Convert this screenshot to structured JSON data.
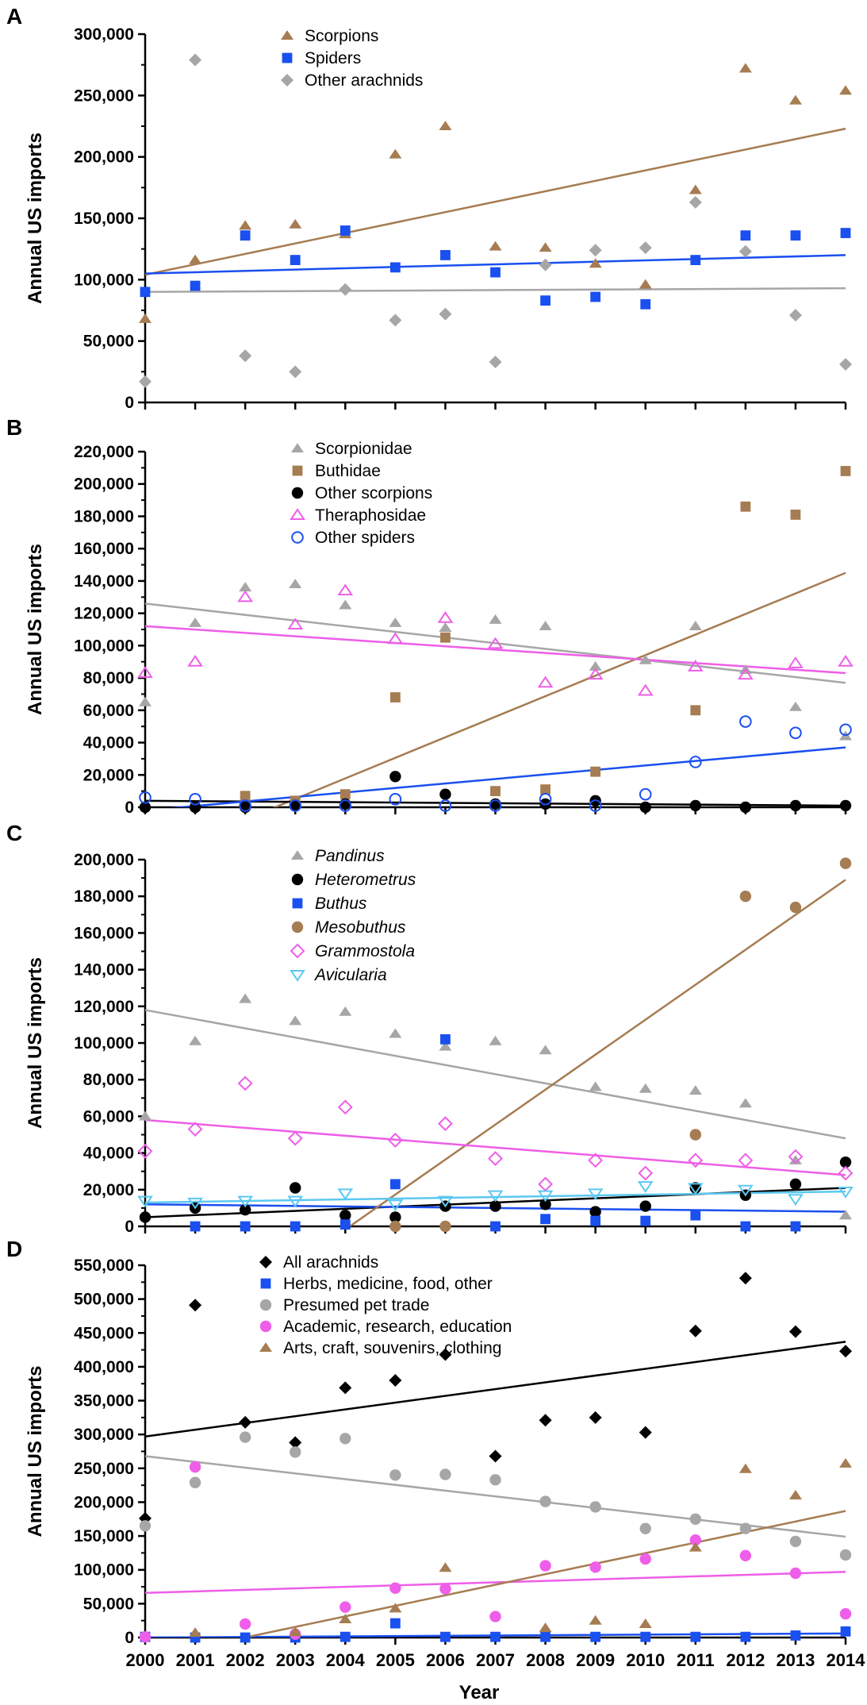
{
  "figure": {
    "xlabel": "Year",
    "x_ticks": [
      "2000",
      "2001",
      "2002",
      "2003",
      "2004",
      "2005",
      "2006",
      "2007",
      "2008",
      "2009",
      "2010",
      "2011",
      "2012",
      "2013",
      "2014"
    ]
  },
  "chart_data": [
    {
      "panel": "A",
      "type": "scatter",
      "ylabel": "Annual US imports",
      "ylim": [
        0,
        300000
      ],
      "y_ticks": [
        "0",
        "50,000",
        "100,000",
        "150,000",
        "200,000",
        "250,000",
        "300,000"
      ],
      "x": [
        2000,
        2001,
        2002,
        2003,
        2004,
        2005,
        2006,
        2007,
        2008,
        2009,
        2010,
        2011,
        2012,
        2013,
        2014
      ],
      "series": [
        {
          "name": "Scorpions",
          "marker": "triangle",
          "color": "#a67c52",
          "italic": false,
          "values": [
            68000,
            116000,
            144000,
            145000,
            137000,
            202000,
            225000,
            127000,
            126000,
            113000,
            96000,
            173000,
            272000,
            246000,
            254000
          ],
          "trend": [
            104000,
            223000
          ]
        },
        {
          "name": "Spiders",
          "marker": "square",
          "color": "#1a4ff0",
          "italic": false,
          "values": [
            90000,
            95000,
            136000,
            116000,
            140000,
            110000,
            120000,
            106000,
            83000,
            86000,
            80000,
            116000,
            136000,
            136000,
            138000
          ],
          "trend": [
            105000,
            120000
          ]
        },
        {
          "name": "Other arachnids",
          "marker": "diamond",
          "color": "#a6a6a6",
          "italic": false,
          "values": [
            17000,
            279000,
            38000,
            25000,
            92000,
            67000,
            72000,
            33000,
            112000,
            124000,
            126000,
            163000,
            123000,
            71000,
            31000
          ],
          "trend": [
            90000,
            93000
          ]
        }
      ]
    },
    {
      "panel": "B",
      "type": "scatter",
      "ylabel": "Annual US imports",
      "ylim": [
        0,
        220000
      ],
      "y_ticks": [
        "0",
        "20,000",
        "40,000",
        "60,000",
        "80,000",
        "100,000",
        "120,000",
        "140,000",
        "160,000",
        "180,000",
        "200,000",
        "220,000"
      ],
      "x": [
        2000,
        2001,
        2002,
        2003,
        2004,
        2005,
        2006,
        2007,
        2008,
        2009,
        2010,
        2011,
        2012,
        2013,
        2014
      ],
      "series": [
        {
          "name": "Scorpionidae",
          "marker": "triangle",
          "color": "#a6a6a6",
          "italic": false,
          "values": [
            65000,
            114000,
            136000,
            138000,
            125000,
            114000,
            111000,
            116000,
            112000,
            87000,
            91000,
            112000,
            85000,
            62000,
            44000
          ],
          "trend": [
            126000,
            77000
          ]
        },
        {
          "name": "Buthidae",
          "marker": "square",
          "color": "#a67c52",
          "italic": false,
          "values": [
            null,
            null,
            7000,
            4000,
            8000,
            68000,
            105000,
            10000,
            11000,
            22000,
            null,
            60000,
            186000,
            181000,
            208000
          ],
          "trend": [
            -33000,
            145000
          ]
        },
        {
          "name": "Other scorpions",
          "marker": "circle",
          "color": "#000000",
          "italic": false,
          "values": [
            0,
            0,
            0,
            1000,
            2000,
            19000,
            8000,
            2000,
            2000,
            4000,
            0,
            1000,
            0,
            1000,
            1000
          ],
          "trend": [
            4000,
            1000
          ]
        },
        {
          "name": "Theraphosidae",
          "marker": "triangle-open",
          "color": "#ee5ee8",
          "italic": false,
          "values": [
            83000,
            90000,
            130000,
            113000,
            134000,
            104000,
            117000,
            101000,
            77000,
            82000,
            72000,
            87000,
            82000,
            89000,
            90000
          ],
          "trend": [
            112000,
            83000
          ]
        },
        {
          "name": "Other spiders",
          "marker": "circle-open",
          "color": "#1a4ff0",
          "italic": false,
          "values": [
            6000,
            5000,
            1000,
            1000,
            1000,
            5000,
            1000,
            1000,
            5000,
            1000,
            8000,
            28000,
            53000,
            46000,
            48000
          ],
          "trend": [
            -2000,
            37000
          ]
        }
      ]
    },
    {
      "panel": "C",
      "type": "scatter",
      "ylabel": "Annual US imports",
      "ylim": [
        0,
        200000
      ],
      "y_ticks": [
        "0",
        "20,000",
        "40,000",
        "60,000",
        "80,000",
        "100,000",
        "120,000",
        "140,000",
        "160,000",
        "180,000",
        "200,000"
      ],
      "x": [
        2000,
        2001,
        2002,
        2003,
        2004,
        2005,
        2006,
        2007,
        2008,
        2009,
        2010,
        2011,
        2012,
        2013,
        2014
      ],
      "series": [
        {
          "name": "Pandinus",
          "marker": "triangle",
          "color": "#a6a6a6",
          "italic": true,
          "values": [
            60000,
            101000,
            124000,
            112000,
            117000,
            105000,
            98000,
            101000,
            96000,
            76000,
            75000,
            74000,
            67000,
            36000,
            6000
          ],
          "trend": [
            118000,
            48000
          ]
        },
        {
          "name": "Heterometrus",
          "marker": "circle",
          "color": "#000000",
          "italic": true,
          "values": [
            5000,
            10000,
            9000,
            21000,
            6000,
            5000,
            11000,
            11000,
            12000,
            8000,
            11000,
            21000,
            17000,
            23000,
            35000
          ],
          "trend": [
            5000,
            21000
          ]
        },
        {
          "name": "Buthus",
          "marker": "square",
          "color": "#1a4ff0",
          "italic": true,
          "values": [
            null,
            0,
            0,
            0,
            1000,
            23000,
            102000,
            0,
            4000,
            3000,
            3000,
            6000,
            0,
            0,
            null
          ],
          "trend": [
            12000,
            8000
          ]
        },
        {
          "name": "Mesobuthus",
          "marker": "circle",
          "color": "#a67c52",
          "italic": true,
          "values": [
            null,
            null,
            null,
            null,
            null,
            0,
            0,
            null,
            null,
            null,
            null,
            50000,
            180000,
            174000,
            198000
          ],
          "trend": [
            -78000,
            189000
          ]
        },
        {
          "name": "Grammostola",
          "marker": "diamond-open",
          "color": "#ee5ee8",
          "italic": true,
          "values": [
            41000,
            53000,
            78000,
            48000,
            65000,
            47000,
            56000,
            37000,
            23000,
            36000,
            29000,
            36000,
            36000,
            38000,
            29000
          ],
          "trend": [
            58000,
            28000
          ]
        },
        {
          "name": "Avicularia",
          "marker": "triangle-down-open",
          "color": "#5cc8f0",
          "italic": true,
          "values": [
            14000,
            13000,
            14000,
            14000,
            18000,
            12000,
            14000,
            17000,
            17000,
            18000,
            22000,
            21000,
            20000,
            15000,
            19000
          ],
          "trend": [
            13000,
            19000
          ]
        }
      ]
    },
    {
      "panel": "D",
      "type": "scatter",
      "ylabel": "Annual US imports",
      "ylim": [
        0,
        550000
      ],
      "y_ticks": [
        "0",
        "50,000",
        "100,000",
        "150,000",
        "200,000",
        "250,000",
        "300,000",
        "350,000",
        "400,000",
        "450,000",
        "500,000",
        "550,000"
      ],
      "x": [
        2000,
        2001,
        2002,
        2003,
        2004,
        2005,
        2006,
        2007,
        2008,
        2009,
        2010,
        2011,
        2012,
        2013,
        2014
      ],
      "series": [
        {
          "name": "All arachnids",
          "marker": "diamond",
          "color": "#000000",
          "italic": false,
          "values": [
            176000,
            491000,
            318000,
            288000,
            369000,
            380000,
            418000,
            268000,
            321000,
            325000,
            303000,
            453000,
            531000,
            452000,
            423000
          ],
          "trend": [
            297000,
            437000
          ]
        },
        {
          "name": "Herbs, medicine, food, other",
          "marker": "square",
          "color": "#1a4ff0",
          "italic": false,
          "values": [
            1000,
            0,
            0,
            0,
            1000,
            21000,
            1000,
            1000,
            1000,
            1000,
            1000,
            1000,
            1000,
            3000,
            9000
          ],
          "trend": [
            0,
            6000
          ]
        },
        {
          "name": "Presumed pet trade",
          "marker": "circle",
          "color": "#a6a6a6",
          "italic": false,
          "values": [
            165000,
            229000,
            296000,
            274000,
            294000,
            240000,
            241000,
            233000,
            201000,
            193000,
            161000,
            175000,
            161000,
            142000,
            122000
          ],
          "trend": [
            268000,
            149000
          ]
        },
        {
          "name": "Academic, research, education",
          "marker": "circle",
          "color": "#ee5ee8",
          "italic": false,
          "values": [
            1000,
            252000,
            20000,
            5000,
            45000,
            73000,
            72000,
            31000,
            106000,
            104000,
            116000,
            144000,
            121000,
            95000,
            35000
          ],
          "trend": [
            66000,
            97000
          ]
        },
        {
          "name": "Arts, craft, souvenirs, clothing",
          "marker": "triangle",
          "color": "#a67c52",
          "italic": false,
          "values": [
            null,
            7000,
            null,
            8000,
            27000,
            43000,
            103000,
            null,
            14000,
            25000,
            20000,
            133000,
            249000,
            210000,
            257000
          ],
          "trend": [
            -31000,
            187000
          ]
        }
      ]
    }
  ]
}
